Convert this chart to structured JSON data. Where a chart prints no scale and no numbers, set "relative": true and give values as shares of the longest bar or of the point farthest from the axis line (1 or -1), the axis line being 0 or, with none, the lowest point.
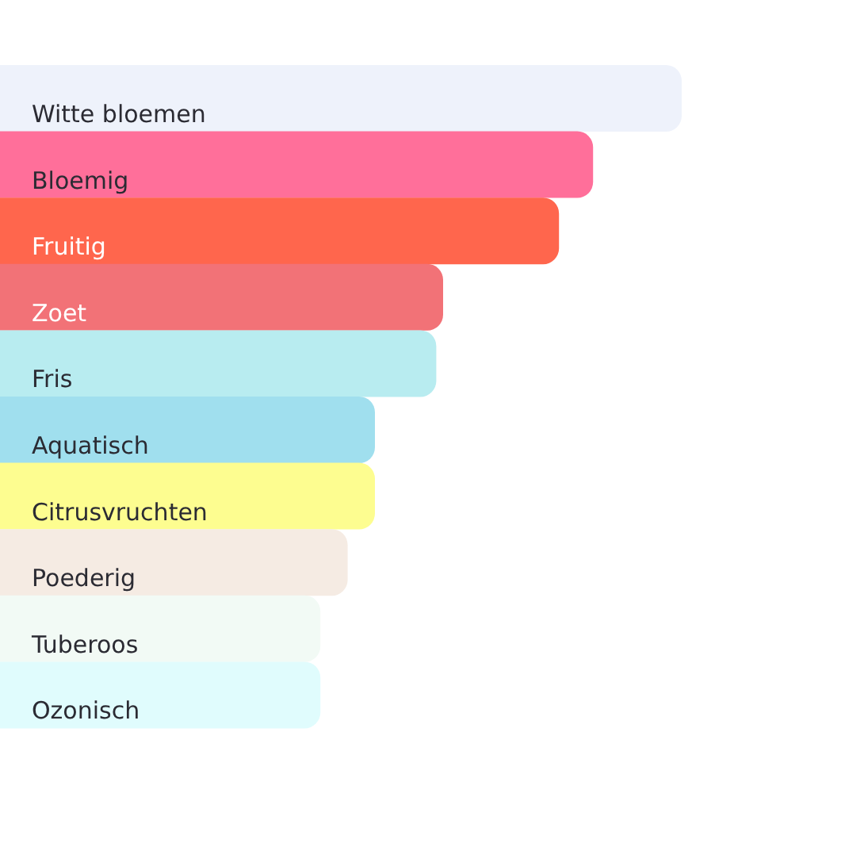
{
  "chart_data": {
    "type": "bar",
    "orientation": "horizontal",
    "relative": true,
    "categories": [
      "Witte bloemen",
      "Bloemig",
      "Fruitig",
      "Zoet",
      "Fris",
      "Aquatisch",
      "Citrusvruchten",
      "Poederig",
      "Tuberoos",
      "Ozonisch"
    ],
    "values": [
      1,
      0.87,
      0.82,
      0.65,
      0.64,
      0.55,
      0.55,
      0.51,
      0.47,
      0.47
    ],
    "colors": [
      "#eef2fb",
      "#ff6f9a",
      "#ff664d",
      "#f27277",
      "#b8ecf0",
      "#a0dfee",
      "#fdfd90",
      "#f5ebe3",
      "#f2faf5",
      "#e0fcfd"
    ]
  }
}
